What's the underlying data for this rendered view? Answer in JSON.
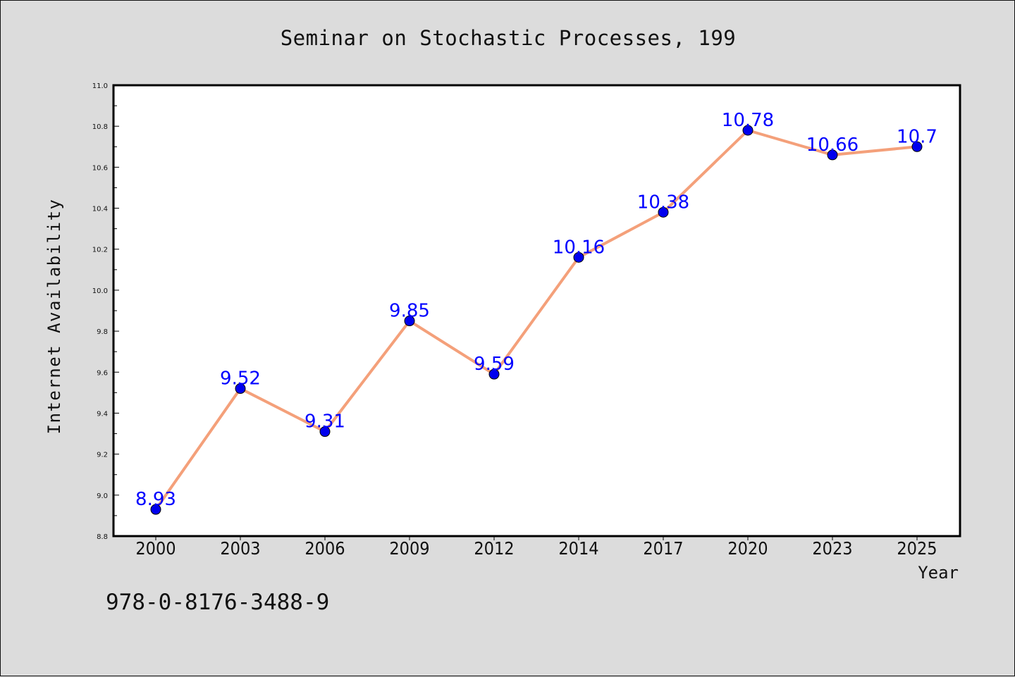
{
  "chart_data": {
    "type": "line",
    "title": "Seminar on Stochastic Processes, 199",
    "xlabel": "Year",
    "ylabel": "Internet Availability",
    "categories": [
      "2000",
      "2003",
      "2006",
      "2009",
      "2012",
      "2014",
      "2017",
      "2020",
      "2023",
      "2025"
    ],
    "values": [
      8.93,
      9.52,
      9.31,
      9.85,
      9.59,
      10.16,
      10.38,
      10.78,
      10.66,
      10.7
    ],
    "data_labels": [
      "8.93",
      "9.52",
      "9.31",
      "9.85",
      "9.59",
      "10.16",
      "10.38",
      "10.78",
      "10.66",
      "10.7"
    ],
    "ylim": [
      8.8,
      11.0
    ],
    "yticks": [
      "8.8",
      "9.0",
      "9.2",
      "9.4",
      "9.6",
      "9.8",
      "10.0",
      "10.2",
      "10.4",
      "10.6",
      "10.8",
      "11.0"
    ],
    "grid": false,
    "line_color": "#f4a07a",
    "marker_color": "#0000ee",
    "label_color": "#0000ff",
    "background_color": "#dcdcdc",
    "plot_background": "#ffffff"
  },
  "footer": {
    "isbn": "978-0-8176-3488-9"
  }
}
